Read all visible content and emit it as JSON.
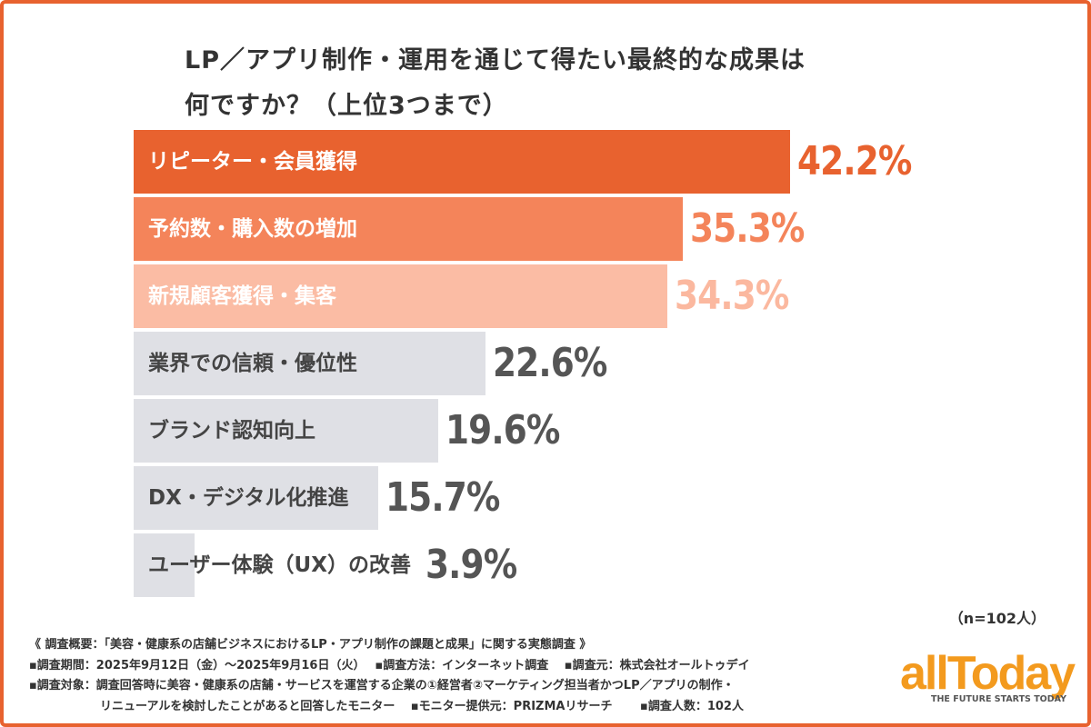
{
  "chart_data": {
    "type": "bar",
    "orientation": "horizontal",
    "title": "LP／アプリ制作・運用を通じて得たい最終的な成果は\n何ですか？（上位3つまで）",
    "categories": [
      "リピーター・会員獲得",
      "予約数・購入数の増加",
      "新規顧客獲得・集客",
      "業界での信頼・優位性",
      "ブランド認知向上",
      "DX・デジタル化推進",
      "ユーザー体験（UX）の改善"
    ],
    "values": [
      42.2,
      35.3,
      34.3,
      22.6,
      19.6,
      15.7,
      3.9
    ],
    "value_labels": [
      "42.2%",
      "35.3%",
      "34.3%",
      "22.6%",
      "19.6%",
      "15.7%",
      "3.9%"
    ],
    "bar_colors": [
      "#e8622f",
      "#f4845a",
      "#fbbca4",
      "#dfe0e5",
      "#dfe0e5",
      "#dfe0e5",
      "#dfe0e5"
    ],
    "label_colors": [
      "#ffffff",
      "#ffffff",
      "#ffffff",
      "#444444",
      "#444444",
      "#444444",
      "#444444"
    ],
    "value_colors": [
      "#e8622f",
      "#f4845a",
      "#fbb89f",
      "#555555",
      "#555555",
      "#555555",
      "#555555"
    ],
    "grid": false
  },
  "sample_size": "（n=102人）",
  "notes": [
    "《 調査概要：「美容・健康系の店舗ビジネスにおけるLP・アプリ制作の課題と成果」に関する実態調査 》",
    "▪調査期間：2025年9月12日（金）～2025年9月16日（火）　 ▪調査方法：インターネット調査　 ▪調査元：株式会社オールトゥデイ",
    "▪調査対象：調査回答時に美容・健康系の店舗・サービスを運営する企業の①経営者②マーケティング担当者かつLP／アプリの制作・",
    "　　　　　　リニューアルを検討したことがあると回答したモニター　 ▪モニター提供元：PRIZMAリサーチ　　 ▪調査人数：102人"
  ],
  "logo": {
    "name": "allToday",
    "tagline": "THE FUTURE STARTS TODAY"
  },
  "colors": {
    "accent": "#e8622f",
    "logo": "#f39a1e"
  }
}
